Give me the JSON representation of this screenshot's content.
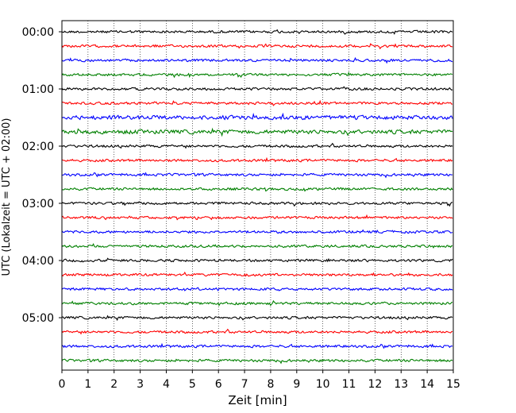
{
  "chart_data": {
    "type": "line",
    "title": "",
    "xlabel": "Zeit  [min]",
    "ylabel": "UTC (Lokalzeit = UTC + 02:00)",
    "xlim": [
      0,
      15
    ],
    "x_ticks": [
      "0",
      "1",
      "2",
      "3",
      "4",
      "5",
      "6",
      "7",
      "8",
      "9",
      "10",
      "11",
      "12",
      "13",
      "14",
      "15"
    ],
    "y_tick_labels": [
      "00:00",
      "01:00",
      "02:00",
      "03:00",
      "04:00",
      "05:00"
    ],
    "grid": "vertical dotted at each minute",
    "trace_interval_minutes": 15,
    "trace_count": 24,
    "trace_colors": [
      "#000000",
      "#ff0000",
      "#0000ff",
      "#008000"
    ],
    "traces": [
      {
        "start": "00:00",
        "color": "#000000"
      },
      {
        "start": "00:15",
        "color": "#ff0000"
      },
      {
        "start": "00:30",
        "color": "#0000ff"
      },
      {
        "start": "00:45",
        "color": "#008000"
      },
      {
        "start": "01:00",
        "color": "#000000"
      },
      {
        "start": "01:15",
        "color": "#ff0000"
      },
      {
        "start": "01:30",
        "color": "#0000ff"
      },
      {
        "start": "01:45",
        "color": "#008000"
      },
      {
        "start": "02:00",
        "color": "#000000"
      },
      {
        "start": "02:15",
        "color": "#ff0000"
      },
      {
        "start": "02:30",
        "color": "#0000ff"
      },
      {
        "start": "02:45",
        "color": "#008000"
      },
      {
        "start": "03:00",
        "color": "#000000"
      },
      {
        "start": "03:15",
        "color": "#ff0000"
      },
      {
        "start": "03:30",
        "color": "#0000ff"
      },
      {
        "start": "03:45",
        "color": "#008000"
      },
      {
        "start": "04:00",
        "color": "#000000"
      },
      {
        "start": "04:15",
        "color": "#ff0000"
      },
      {
        "start": "04:30",
        "color": "#0000ff"
      },
      {
        "start": "04:45",
        "color": "#008000"
      },
      {
        "start": "05:00",
        "color": "#000000"
      },
      {
        "start": "05:15",
        "color": "#ff0000"
      },
      {
        "start": "05:30",
        "color": "#0000ff"
      },
      {
        "start": "05:45",
        "color": "#008000"
      }
    ]
  }
}
